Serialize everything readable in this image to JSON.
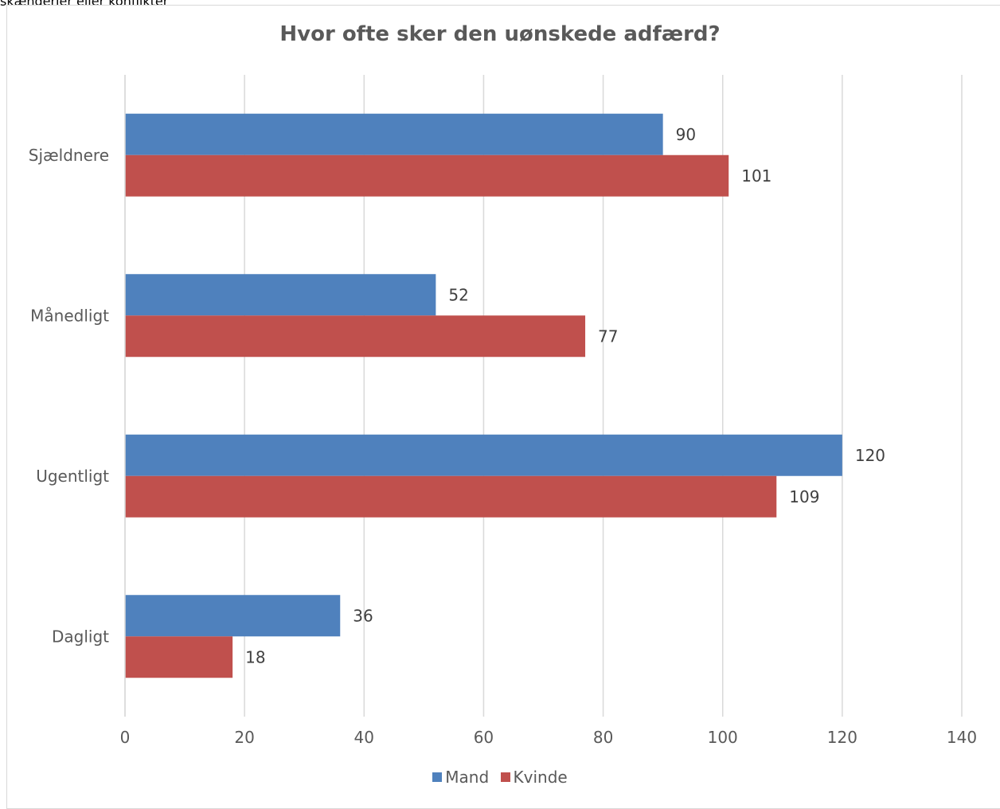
{
  "header_fragment": "skænderier eller konflikter",
  "chart_data": {
    "type": "bar",
    "orientation": "horizontal",
    "title": "Hvor ofte sker den uønskede adfærd?",
    "categories": [
      "Sjældnere",
      "Månedligt",
      "Ugentligt",
      "Dagligt"
    ],
    "series": [
      {
        "name": "Mand",
        "color": "#4f81bd",
        "values": [
          90,
          52,
          120,
          36
        ]
      },
      {
        "name": "Kvinde",
        "color": "#c0504d",
        "values": [
          101,
          77,
          109,
          18
        ]
      }
    ],
    "xlim": [
      0,
      140
    ],
    "x_ticks": [
      "0",
      "20",
      "40",
      "60",
      "80",
      "100",
      "120",
      "140"
    ],
    "grid": true,
    "legend_position": "bottom"
  }
}
